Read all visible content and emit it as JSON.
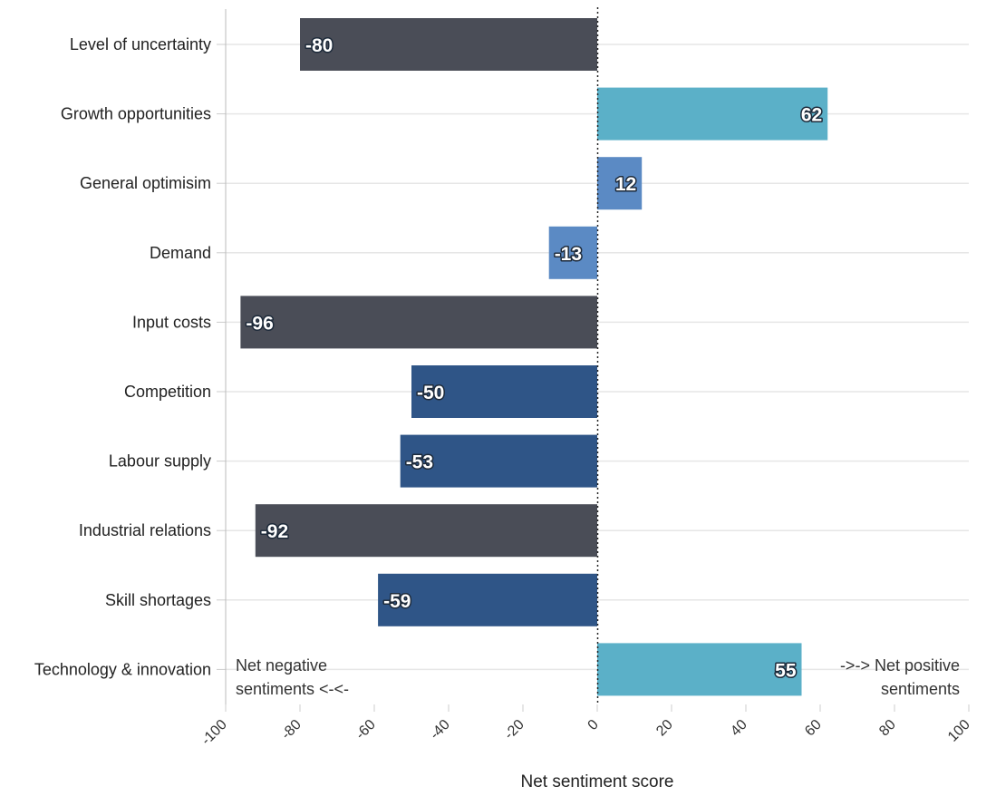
{
  "chart_data": {
    "type": "bar",
    "orientation": "horizontal",
    "categories": [
      "Level of uncertainty",
      "Growth opportunities",
      "General optimisim",
      "Demand",
      "Input costs",
      "Competition",
      "Labour supply",
      "Industrial relations",
      "Skill shortages",
      "Technology & innovation"
    ],
    "values": [
      -80,
      62,
      12,
      -13,
      -96,
      -50,
      -53,
      -92,
      -59,
      55
    ],
    "bar_colors": [
      "#4a4d57",
      "#5bb0c8",
      "#5b8ac4",
      "#5b8ac4",
      "#4a4d57",
      "#2f5587",
      "#2f5587",
      "#4a4d57",
      "#2f5587",
      "#5bb0c8"
    ],
    "value_labels": [
      "-80",
      "62",
      "12",
      "-13",
      "-96",
      "-50",
      "-53",
      "-92",
      "-59",
      "55"
    ],
    "xlabel": "Net sentiment score",
    "ylabel": "",
    "xlim": [
      -100,
      100
    ],
    "xticks": [
      -100,
      -80,
      -60,
      -40,
      -20,
      0,
      20,
      40,
      60,
      80,
      100
    ],
    "xtick_labels": [
      "-100",
      "-80",
      "-60",
      "-40",
      "-20",
      "0",
      "20",
      "40",
      "60",
      "80",
      "100"
    ],
    "grid": "horizontal",
    "annotations": {
      "negative": [
        "Net negative",
        "sentiments <-<-"
      ],
      "positive": [
        "->-> Net positive",
        "sentiments"
      ]
    }
  }
}
